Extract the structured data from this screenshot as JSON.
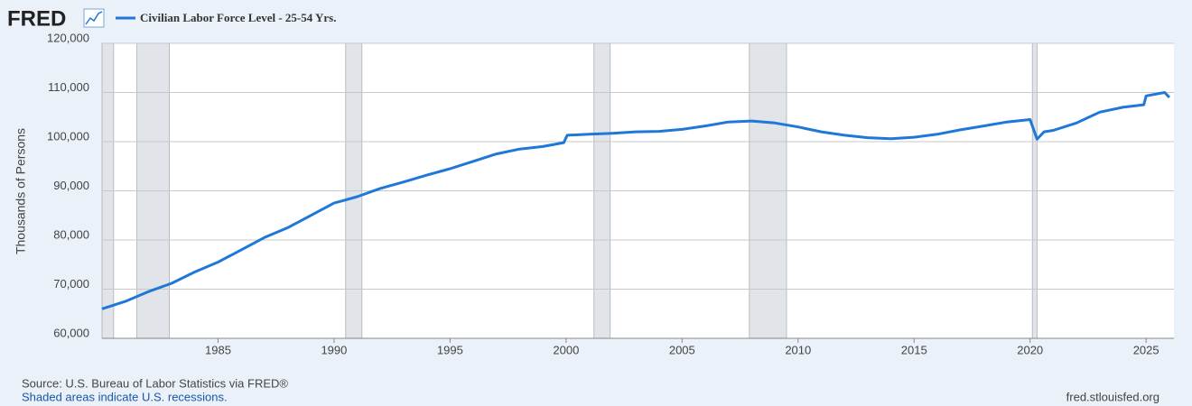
{
  "chart_data": {
    "type": "line",
    "logo": "FRED",
    "ylabel": "Thousands of Persons",
    "source": "Source: U.S. Bureau of Labor Statistics via FRED®",
    "note": "Shaded areas indicate U.S. recessions.",
    "url": "fred.stlouisfed.org",
    "x": [
      1980,
      1981,
      1982,
      1983,
      1984,
      1985,
      1986,
      1987,
      1988,
      1989,
      1990,
      1991,
      1992,
      1993,
      1994,
      1995,
      1996,
      1997,
      1998,
      1999,
      1999.9,
      2000.05,
      2001,
      2002,
      2003,
      2004,
      2005,
      2006,
      2007,
      2008,
      2009,
      2010,
      2011,
      2012,
      2013,
      2014,
      2015,
      2016,
      2017,
      2018,
      2019,
      2020,
      2020.3,
      2020.6,
      2021,
      2022,
      2023,
      2024,
      2024.9,
      2025,
      2025.8,
      2026
    ],
    "series": [
      {
        "name": "Civilian Labor Force Level - 25-54 Yrs.",
        "color": "#1f78d8",
        "values": [
          66000,
          67500,
          69500,
          71200,
          73500,
          75500,
          78000,
          80500,
          82500,
          85000,
          87500,
          88800,
          90500,
          91800,
          93200,
          94500,
          96000,
          97500,
          98500,
          99000,
          99800,
          101300,
          101500,
          101700,
          102000,
          102100,
          102500,
          103200,
          104000,
          104200,
          103800,
          103000,
          102000,
          101300,
          100800,
          100600,
          100900,
          101500,
          102400,
          103200,
          104000,
          104500,
          100500,
          102000,
          102300,
          103800,
          106000,
          107000,
          107500,
          109300,
          110000,
          109000
        ]
      }
    ],
    "recessions": [
      [
        1980.0,
        1980.5
      ],
      [
        1981.5,
        1982.9
      ],
      [
        1990.5,
        1991.2
      ],
      [
        2001.2,
        2001.9
      ],
      [
        2007.9,
        2009.5
      ],
      [
        2020.1,
        2020.3
      ]
    ],
    "recession_color": "#e1e5ea",
    "xlim": [
      1980,
      2026.2
    ],
    "xticks": [
      1985,
      1990,
      1995,
      2000,
      2005,
      2010,
      2015,
      2020,
      2025
    ],
    "ylim": [
      60000,
      120000
    ],
    "yticks": [
      {
        "value": 60000,
        "label": "60,000"
      },
      {
        "value": 70000,
        "label": "70,000"
      },
      {
        "value": 80000,
        "label": "80,000"
      },
      {
        "value": 90000,
        "label": "90,000"
      },
      {
        "value": 100000,
        "label": "100,000"
      },
      {
        "value": 110000,
        "label": "110,000"
      },
      {
        "value": 120000,
        "label": "120,000"
      }
    ],
    "grid": true
  }
}
